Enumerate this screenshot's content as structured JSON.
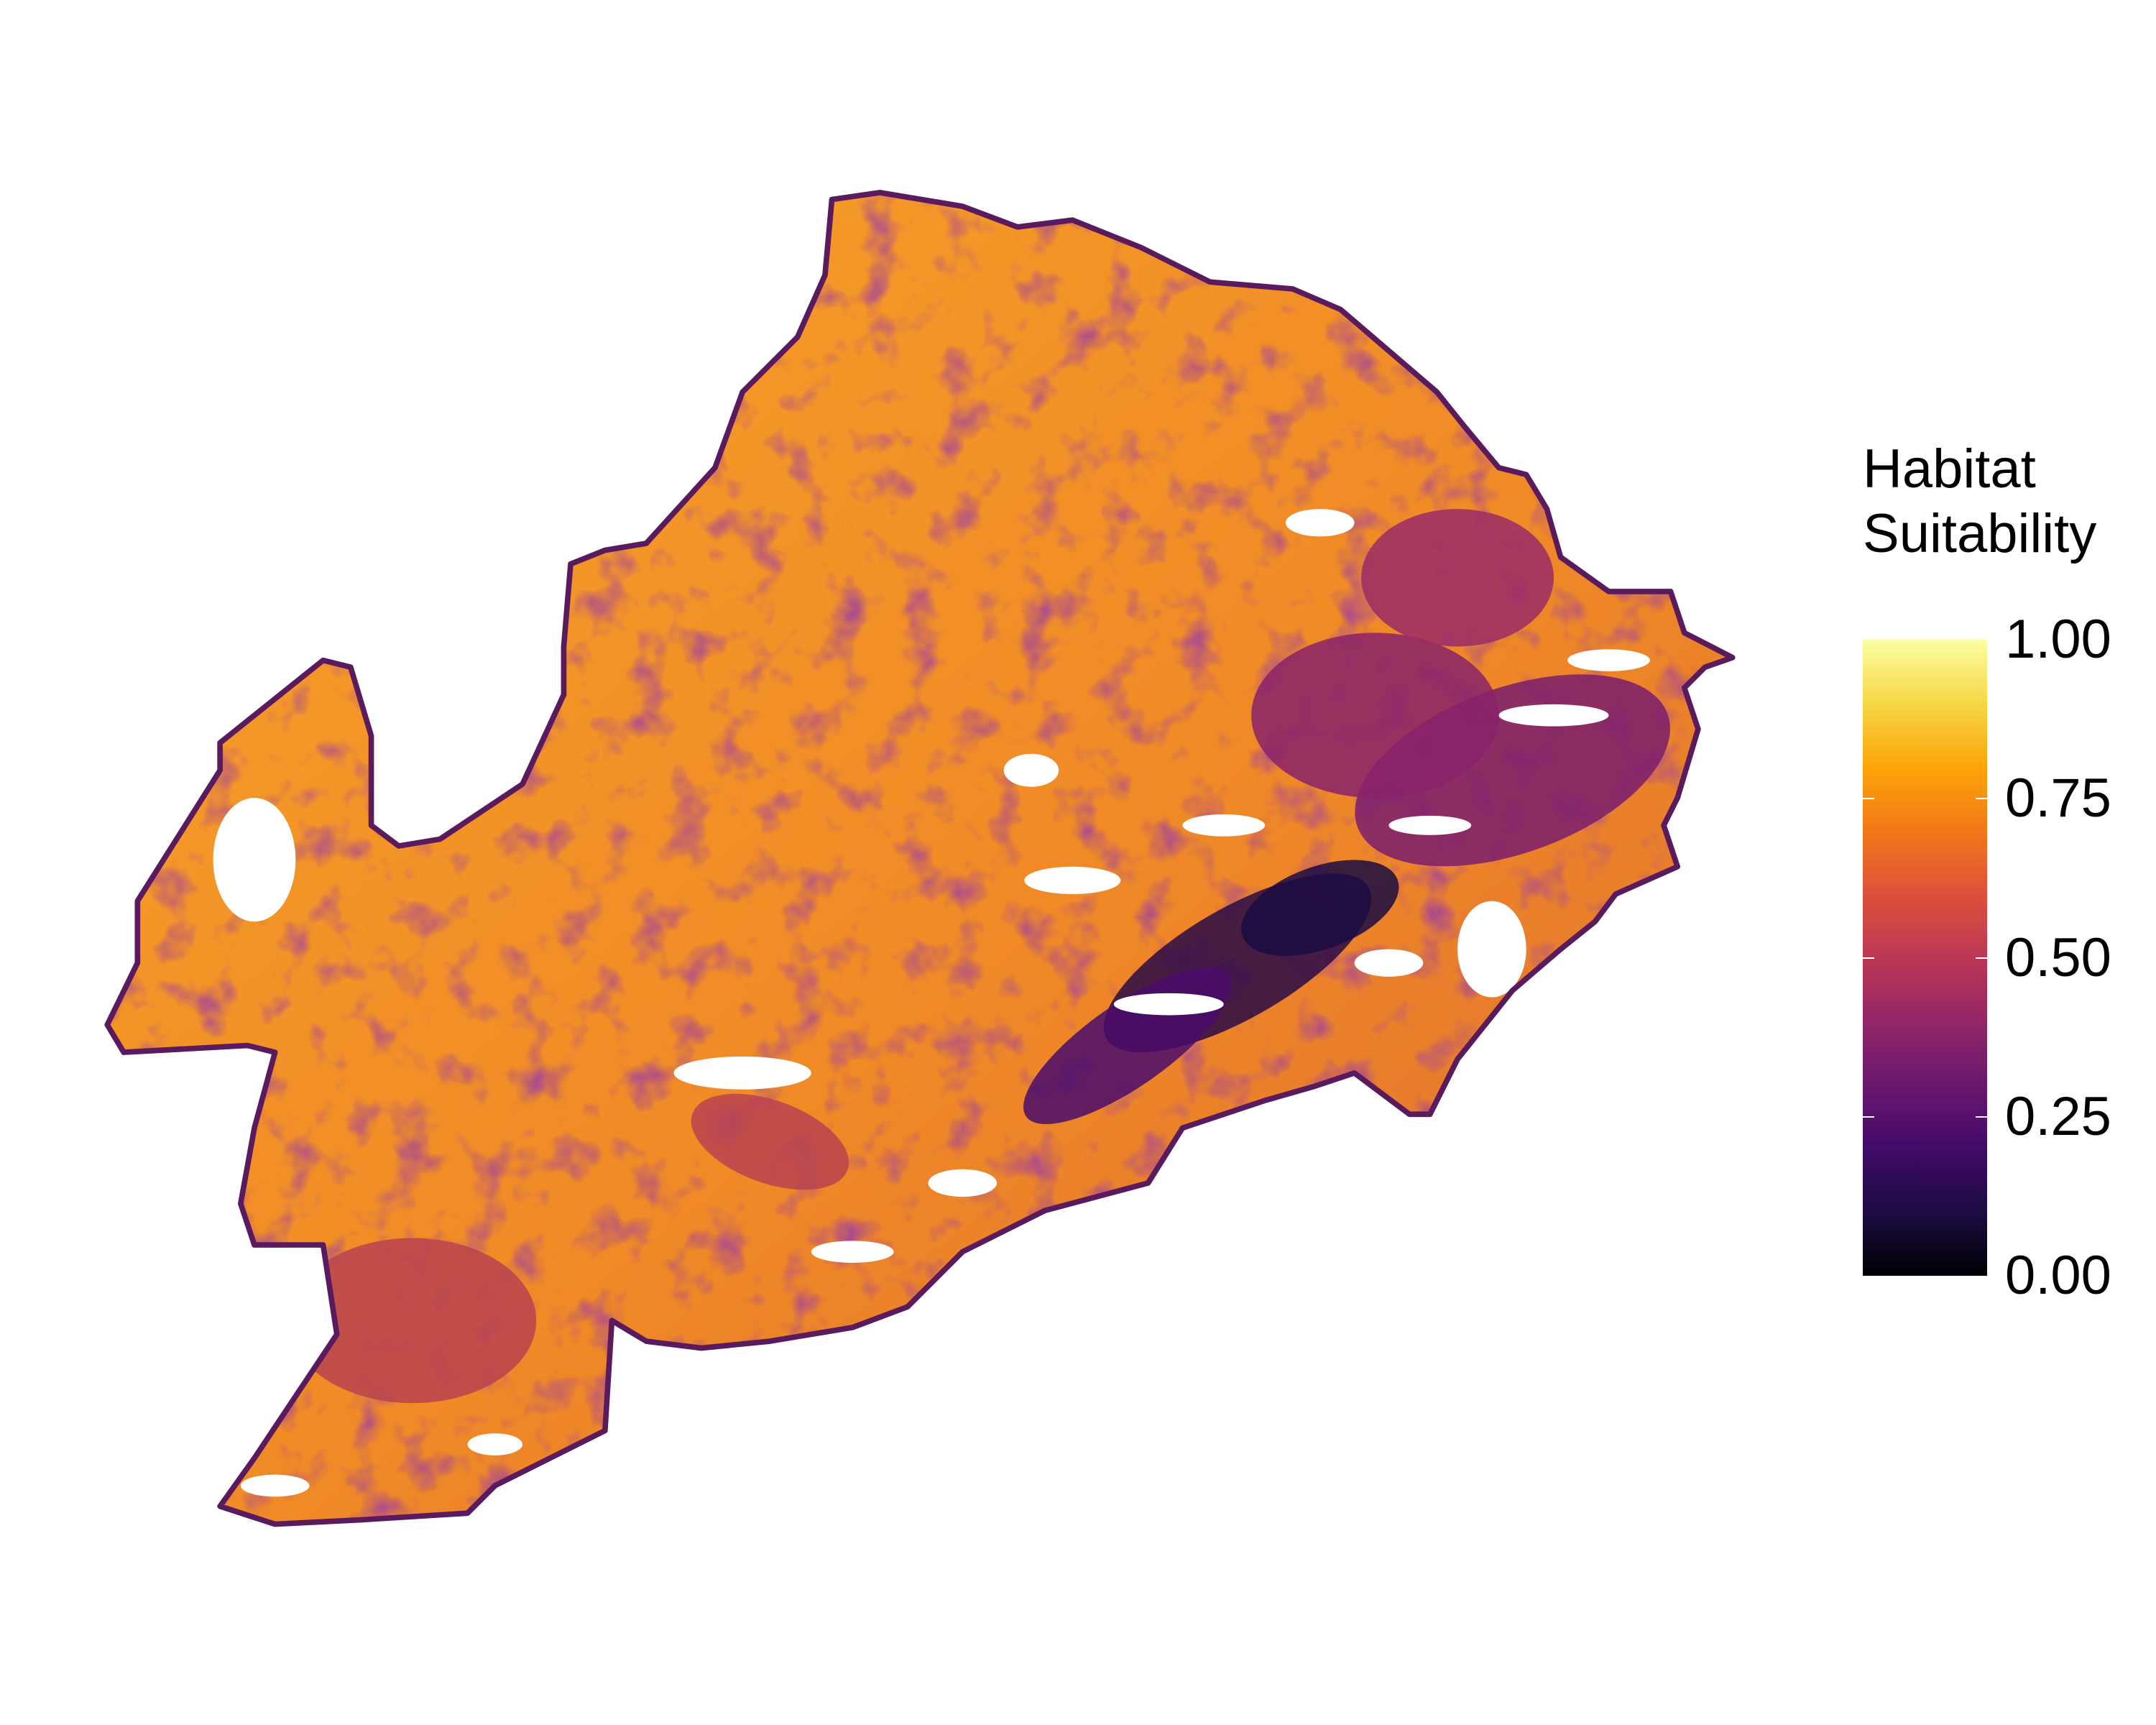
{
  "chart_data": {
    "type": "heatmap",
    "description_kind": "raster map",
    "colorbar": {
      "title": "Habitat\nSuitability",
      "title_lines": [
        "Habitat",
        "Suitability"
      ],
      "range": [
        0,
        1
      ],
      "ticks": [
        0.0,
        0.25,
        0.5,
        0.75,
        1.0
      ],
      "tick_labels": [
        "0.00",
        "0.25",
        "0.50",
        "0.75",
        "1.00"
      ],
      "palette": "inferno",
      "palette_colors": [
        "#000004",
        "#1b0c41",
        "#420a68",
        "#6a176e",
        "#932667",
        "#bc3754",
        "#dd513a",
        "#f37819",
        "#fca50a",
        "#f6d746",
        "#fcffa4"
      ]
    },
    "legend_position": "right",
    "boundary_color": "#5a1a5e",
    "no_data_color": "#ffffff"
  }
}
